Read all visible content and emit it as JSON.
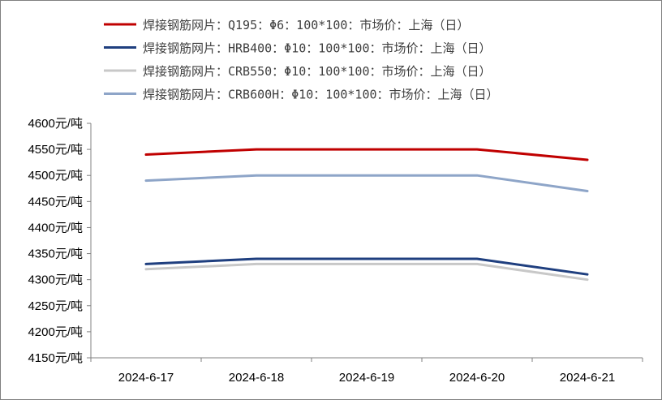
{
  "chart_data": {
    "type": "line",
    "title": "",
    "xlabel": "",
    "ylabel": "",
    "categories": [
      "2024-6-17",
      "2024-6-18",
      "2024-6-19",
      "2024-6-20",
      "2024-6-21"
    ],
    "y_unit": "元/吨",
    "ylim": [
      4150,
      4600
    ],
    "yticks": [
      4150,
      4200,
      4250,
      4300,
      4350,
      4400,
      4450,
      4500,
      4550,
      4600
    ],
    "grid": false,
    "legend_position": "top-left",
    "series": [
      {
        "name": "焊接钢筋网片：Q195：Φ6：100*100：市场价：上海（日）",
        "color": "#C00000",
        "values": [
          4540,
          4550,
          4550,
          4550,
          4530
        ]
      },
      {
        "name": "焊接钢筋网片：HRB400：Φ10：100*100：市场价：上海（日）",
        "color": "#1F3F7F",
        "values": [
          4330,
          4340,
          4340,
          4340,
          4310
        ]
      },
      {
        "name": "焊接钢筋网片：CRB550：Φ10：100*100：市场价：上海（日）",
        "color": "#C8C8C8",
        "values": [
          4320,
          4330,
          4330,
          4330,
          4300
        ]
      },
      {
        "name": "焊接钢筋网片：CRB600H：Φ10：100*100：市场价：上海（日）",
        "color": "#8EA5C8",
        "values": [
          4490,
          4500,
          4500,
          4500,
          4470
        ]
      }
    ]
  }
}
